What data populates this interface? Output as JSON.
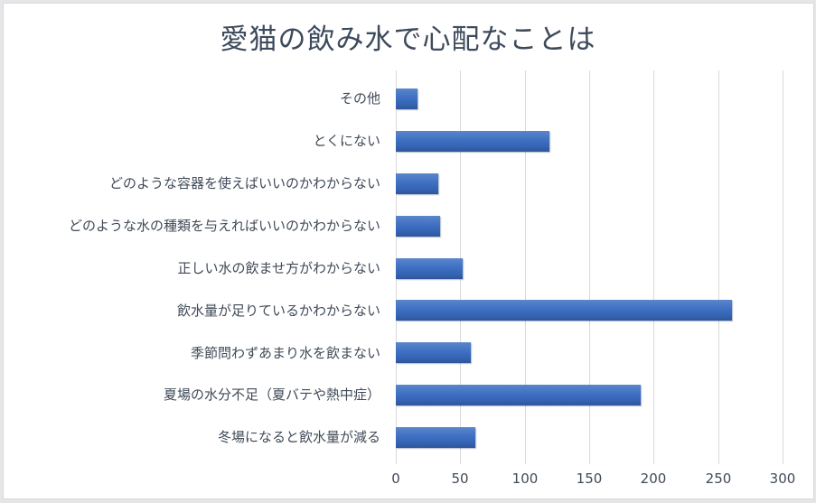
{
  "chart_data": {
    "type": "bar",
    "orientation": "horizontal",
    "title": "愛猫の飲み水で心配なことは",
    "xlabel": "",
    "ylabel": "",
    "xlim": [
      0,
      300
    ],
    "x_ticks": [
      "0",
      "50",
      "100",
      "150",
      "200",
      "250",
      "300"
    ],
    "grid": true,
    "legend": null,
    "bar_color": "#4472C4",
    "categories": [
      "その他",
      "とくにない",
      "どのような容器を使えばいいのかわからない",
      "どのような水の種類を与えればいいのかわからない",
      "正しい水の飲ませ方がわからない",
      "飲水量が足りているかわからない",
      "季節問わずあまり水を飲まない",
      "夏場の水分不足（夏バテや熱中症）",
      "冬場になると飲水量が減る"
    ],
    "values": [
      17,
      119,
      33,
      34,
      52,
      261,
      58,
      190,
      62
    ]
  }
}
